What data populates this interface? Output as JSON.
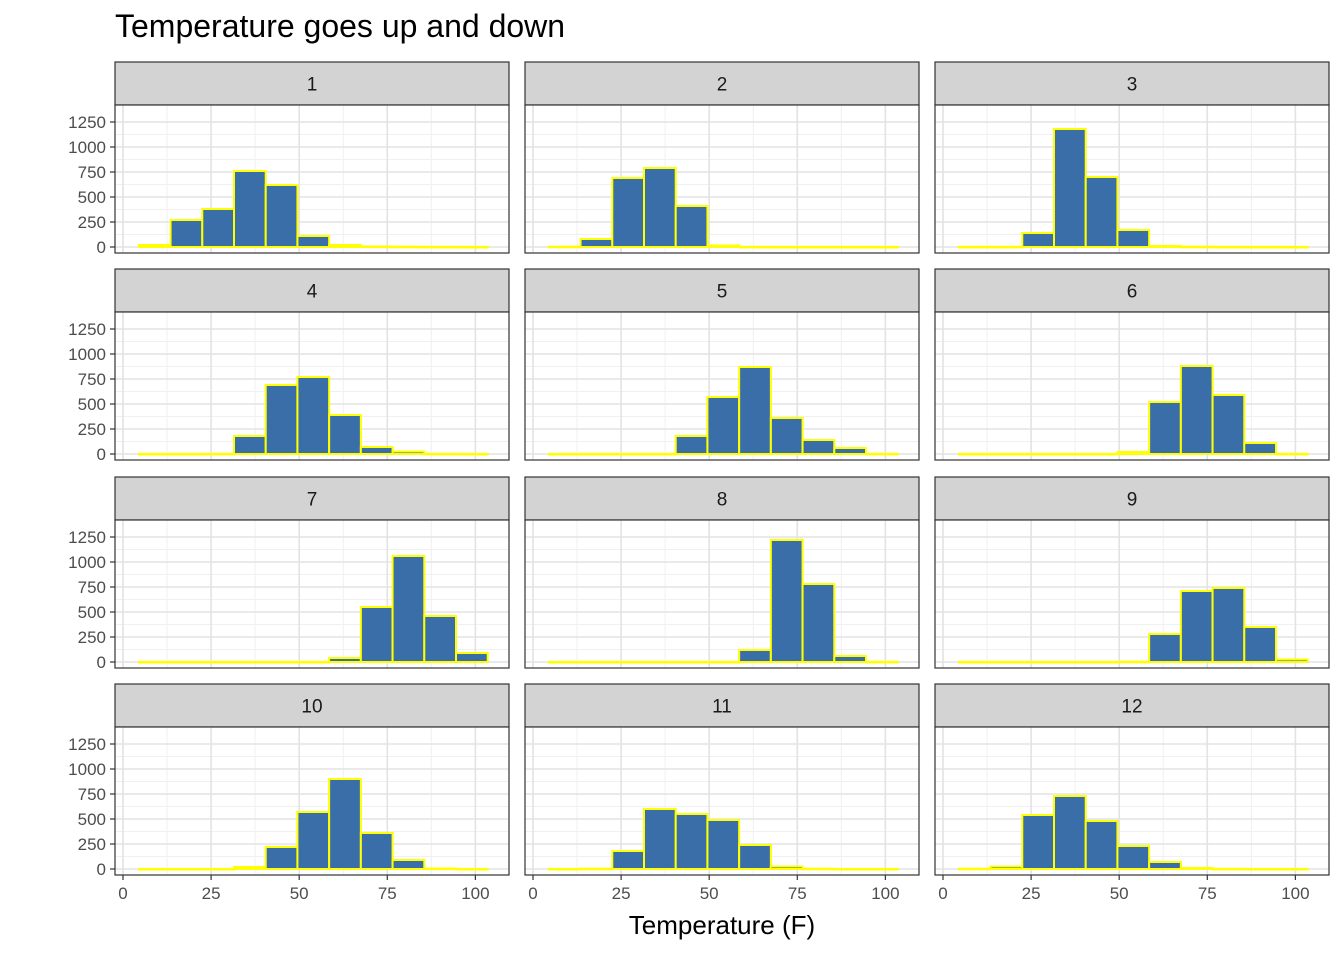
{
  "chart_data": {
    "type": "bar",
    "title": "Temperature goes up and down",
    "xlabel": "Temperature (F)",
    "ylabel": "",
    "xlim": [
      0,
      105
    ],
    "ylim": [
      0,
      1300
    ],
    "x_ticks": [
      0,
      25,
      50,
      75,
      100
    ],
    "y_ticks": [
      0,
      250,
      500,
      750,
      1000,
      1250
    ],
    "grid": true,
    "legend": "none",
    "bin_edges": [
      4.5,
      13.5,
      22.5,
      31.5,
      40.5,
      49.5,
      58.5,
      67.5,
      76.5,
      85.5,
      94.5,
      103.5
    ],
    "bar_fill": "#3A6EA8",
    "bar_outline": "#FFFF00",
    "strip_fill": "#D3D3D3",
    "panels": [
      {
        "label": "1",
        "counts": [
          20,
          270,
          380,
          760,
          620,
          110,
          20,
          5,
          3,
          2,
          1
        ]
      },
      {
        "label": "2",
        "counts": [
          3,
          80,
          690,
          790,
          410,
          15,
          2,
          1,
          1,
          1,
          1
        ]
      },
      {
        "label": "3",
        "counts": [
          2,
          2,
          140,
          1180,
          700,
          170,
          10,
          3,
          2,
          1,
          1
        ]
      },
      {
        "label": "4",
        "counts": [
          1,
          1,
          2,
          180,
          690,
          770,
          390,
          70,
          25,
          2,
          1
        ]
      },
      {
        "label": "5",
        "counts": [
          1,
          1,
          1,
          1,
          180,
          570,
          870,
          360,
          140,
          60,
          2
        ]
      },
      {
        "label": "6",
        "counts": [
          1,
          1,
          1,
          1,
          1,
          20,
          520,
          880,
          590,
          110,
          2
        ]
      },
      {
        "label": "7",
        "counts": [
          1,
          1,
          1,
          1,
          1,
          1,
          40,
          550,
          1060,
          460,
          90
        ]
      },
      {
        "label": "8",
        "counts": [
          1,
          1,
          1,
          1,
          1,
          1,
          120,
          1220,
          780,
          60,
          2
        ]
      },
      {
        "label": "9",
        "counts": [
          1,
          1,
          1,
          1,
          1,
          3,
          280,
          710,
          740,
          350,
          25
        ]
      },
      {
        "label": "10",
        "counts": [
          1,
          1,
          1,
          20,
          220,
          570,
          900,
          360,
          90,
          5,
          1
        ]
      },
      {
        "label": "11",
        "counts": [
          1,
          3,
          180,
          600,
          550,
          490,
          240,
          25,
          3,
          1,
          1
        ]
      },
      {
        "label": "12",
        "counts": [
          3,
          25,
          540,
          730,
          480,
          230,
          70,
          10,
          2,
          1,
          1
        ]
      }
    ]
  }
}
